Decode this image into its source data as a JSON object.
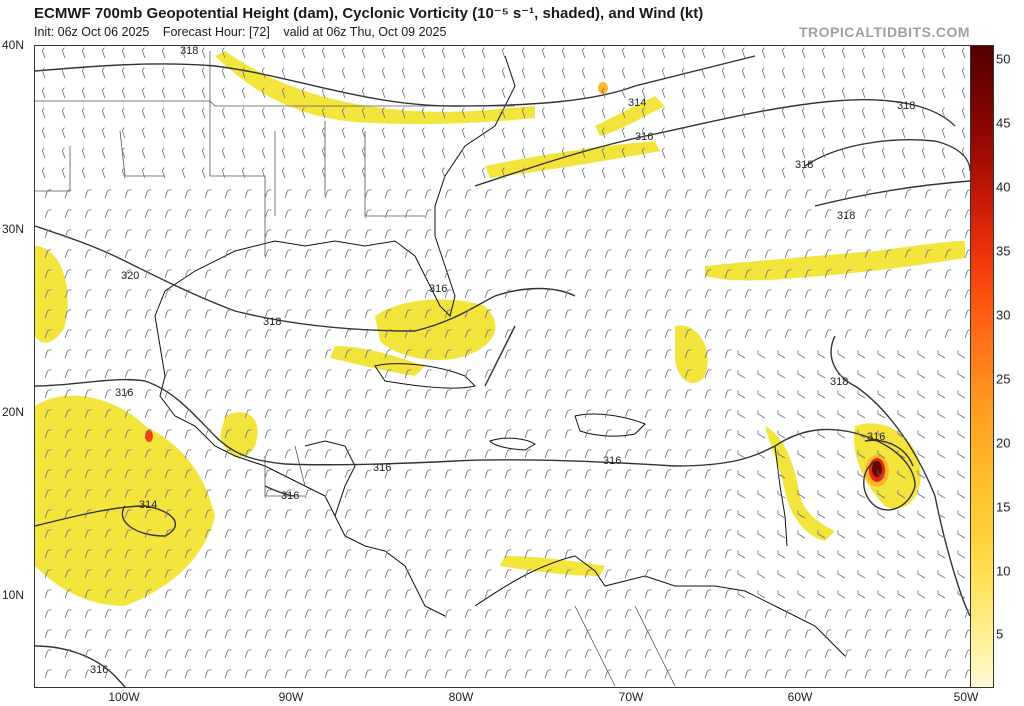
{
  "header": {
    "title": "ECMWF 700mb Geopotential Height (dam), Cyclonic Vorticity (10⁻⁵ s⁻¹, shaded), and Wind (kt)",
    "init": "Init: 06z Oct 06 2025",
    "forecast_hour": "Forecast Hour: [72]",
    "valid": "valid at 06z Thu, Oct 09 2025",
    "brand": "TROPICALTIDBITS.COM"
  },
  "axes": {
    "lat_labels": [
      "40N",
      "30N",
      "20N",
      "10N"
    ],
    "lon_labels": [
      "100W",
      "90W",
      "80W",
      "70W",
      "60W",
      "50W"
    ]
  },
  "colorbar": {
    "ticks": [
      "5",
      "10",
      "15",
      "20",
      "25",
      "30",
      "35",
      "40",
      "45",
      "50"
    ],
    "colors": [
      "#fffbd6",
      "#fff3a3",
      "#ffe97a",
      "#ffdf55",
      "#ffd13a",
      "#ffc52e",
      "#ffb628",
      "#ffa323",
      "#ff8e1d",
      "#ff7618",
      "#ff5b12",
      "#f4400d",
      "#e02a09",
      "#c41806",
      "#a40d04",
      "#860602",
      "#6a0201",
      "#520000"
    ]
  },
  "contour_labels": [
    "318",
    "314",
    "316",
    "318",
    "318",
    "318",
    "320",
    "316",
    "318",
    "316",
    "318",
    "316",
    "316",
    "316",
    "316",
    "314",
    "316"
  ],
  "colors": {
    "shading": "#f2e01a",
    "contour": "#333333",
    "coast": "#111111",
    "border": "#666666",
    "barb": "#6b6b8c"
  }
}
